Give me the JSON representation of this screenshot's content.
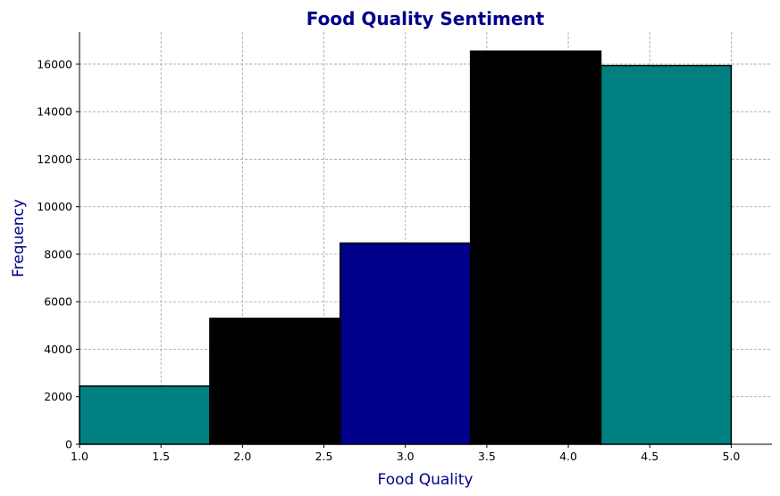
{
  "chart_data": {
    "type": "bar",
    "title": "Food Quality Sentiment",
    "xlabel": "Food Quality",
    "ylabel": "Frequency",
    "bins": [
      {
        "x0": 1.0,
        "x1": 1.8,
        "value": 2450,
        "color": "#008080"
      },
      {
        "x0": 1.8,
        "x1": 2.6,
        "value": 5300,
        "color": "#000000"
      },
      {
        "x0": 2.6,
        "x1": 3.4,
        "value": 8470,
        "color": "#00008B"
      },
      {
        "x0": 3.4,
        "x1": 4.2,
        "value": 16550,
        "color": "#000000"
      },
      {
        "x0": 4.2,
        "x1": 5.0,
        "value": 15940,
        "color": "#008080"
      }
    ],
    "xlim": [
      1.0,
      5.25
    ],
    "ylim": [
      0,
      17350
    ],
    "xticks": [
      "1.0",
      "1.5",
      "2.0",
      "2.5",
      "3.0",
      "3.5",
      "4.0",
      "4.5",
      "5.0"
    ],
    "yticks": [
      "0",
      "2000",
      "4000",
      "6000",
      "8000",
      "10000",
      "12000",
      "14000",
      "16000"
    ],
    "grid": true,
    "colors": {
      "title": "#00008B",
      "axis_label": "#00008B",
      "grid": "#a0a0a0",
      "edge": "#000000"
    }
  }
}
